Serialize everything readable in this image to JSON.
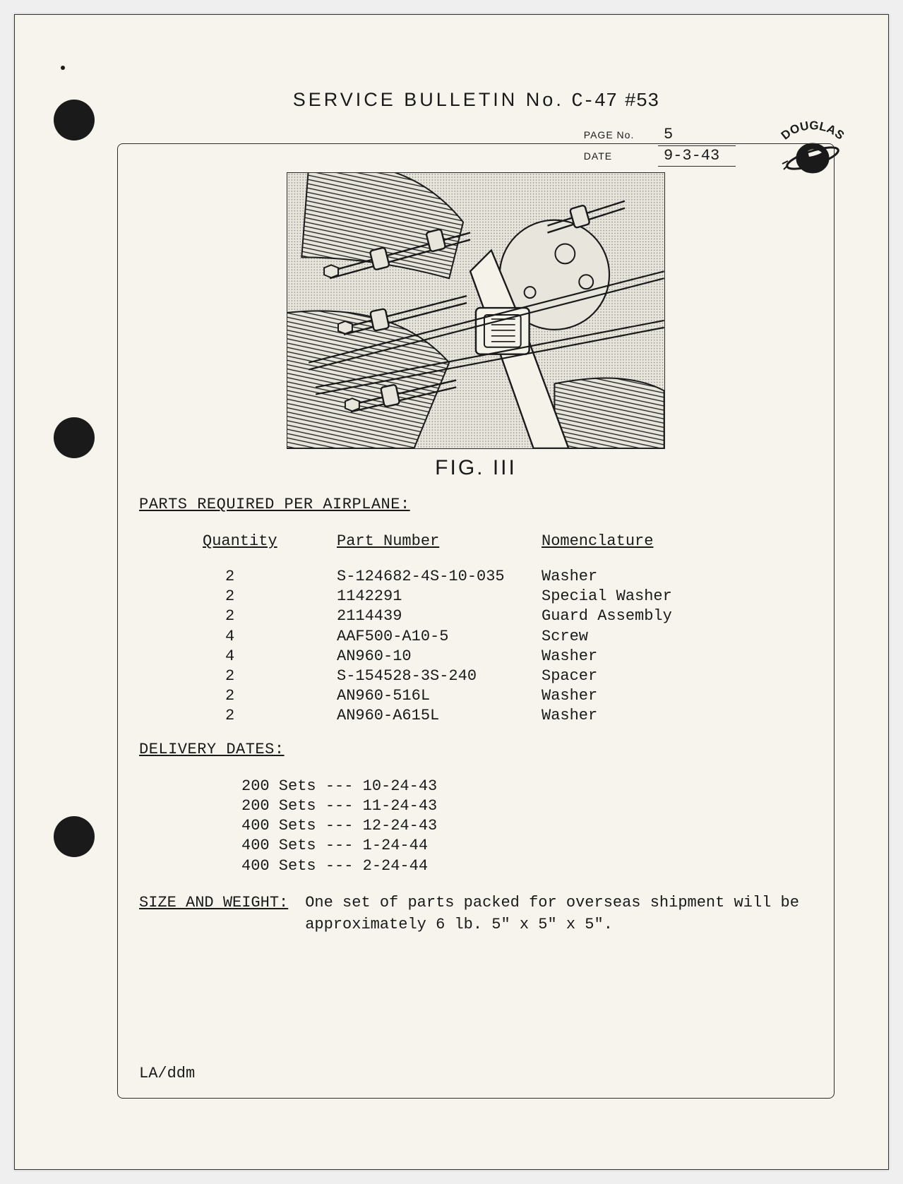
{
  "header": {
    "title_label": "SERVICE BULLETIN No.",
    "title_prefix": "C-47",
    "title_number": "#53",
    "page_label": "PAGE No.",
    "page_value": "5",
    "date_label": "DATE",
    "date_value": "9-3-43"
  },
  "logo": {
    "text": "DOUGLAS"
  },
  "figure": {
    "caption": "FIG. III",
    "border_color": "#2a2a2a",
    "background": "#eae7df",
    "line_color": "#1a1a1a",
    "hatch_color": "#4a4a4a"
  },
  "parts_section": {
    "heading": "PARTS REQUIRED PER AIRPLANE:",
    "columns": [
      "Quantity",
      "Part Number",
      "Nomenclature"
    ],
    "rows": [
      [
        "2",
        "S-124682-4S-10-035",
        "Washer"
      ],
      [
        "2",
        "1142291",
        "Special Washer"
      ],
      [
        "2",
        "2114439",
        "Guard Assembly"
      ],
      [
        "4",
        "AAF500-A10-5",
        "Screw"
      ],
      [
        "4",
        "AN960-10",
        "Washer"
      ],
      [
        "2",
        "S-154528-3S-240",
        "Spacer"
      ],
      [
        "2",
        "AN960-516L",
        "Washer"
      ],
      [
        "2",
        "AN960-A615L",
        "Washer"
      ]
    ]
  },
  "delivery_section": {
    "heading": "DELIVERY DATES:",
    "rows": [
      "200 Sets --- 10-24-43",
      "200 Sets --- 11-24-43",
      "400 Sets --- 12-24-43",
      "400 Sets --- 1-24-44",
      "400 Sets --- 2-24-44"
    ]
  },
  "size_section": {
    "heading": "SIZE AND WEIGHT:",
    "body": "One set of parts packed for overseas shipment will be approximately 6 lb. 5\" x 5\" x 5\"."
  },
  "footer": {
    "initials": "LA/ddm"
  },
  "colors": {
    "page_bg": "#f7f4ed",
    "ink": "#1a1a1a",
    "frame": "#2a2a2a"
  }
}
